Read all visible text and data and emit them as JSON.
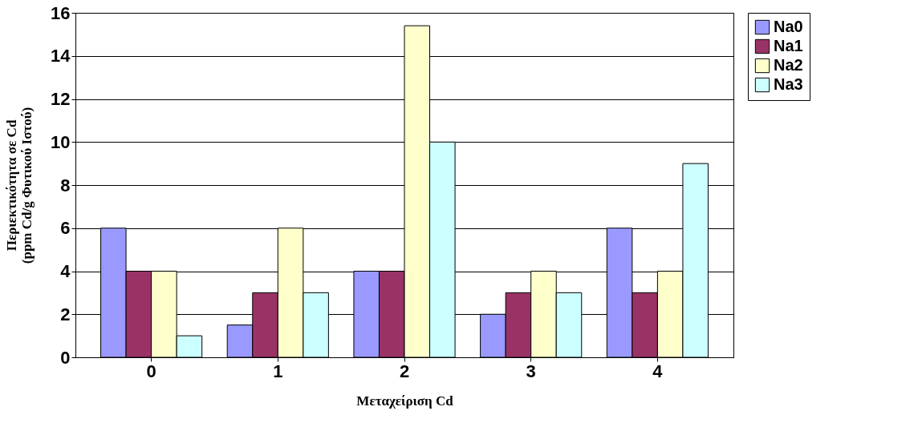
{
  "chart_data": {
    "type": "bar",
    "xlabel": "Μεταχείριση Cd",
    "ylabel": "Περιεκτικότητα σε Cd\n(ppm Cd/g Φυτικού Ιστού)",
    "categories": [
      "0",
      "1",
      "2",
      "3",
      "4"
    ],
    "series": [
      {
        "name": "Na0",
        "color": "#9999ff",
        "values": [
          6,
          1.5,
          4,
          2,
          6
        ]
      },
      {
        "name": "Na1",
        "color": "#993366",
        "values": [
          4,
          3,
          4,
          3,
          3
        ]
      },
      {
        "name": "Na2",
        "color": "#ffffcc",
        "values": [
          4,
          6,
          15.4,
          4,
          4
        ]
      },
      {
        "name": "Na3",
        "color": "#ccffff",
        "values": [
          1,
          3,
          10,
          3,
          9
        ]
      }
    ],
    "ylim": [
      0,
      16
    ],
    "yticks": [
      0,
      2,
      4,
      6,
      8,
      10,
      12,
      14,
      16
    ],
    "grid": "y",
    "legend": "right"
  }
}
